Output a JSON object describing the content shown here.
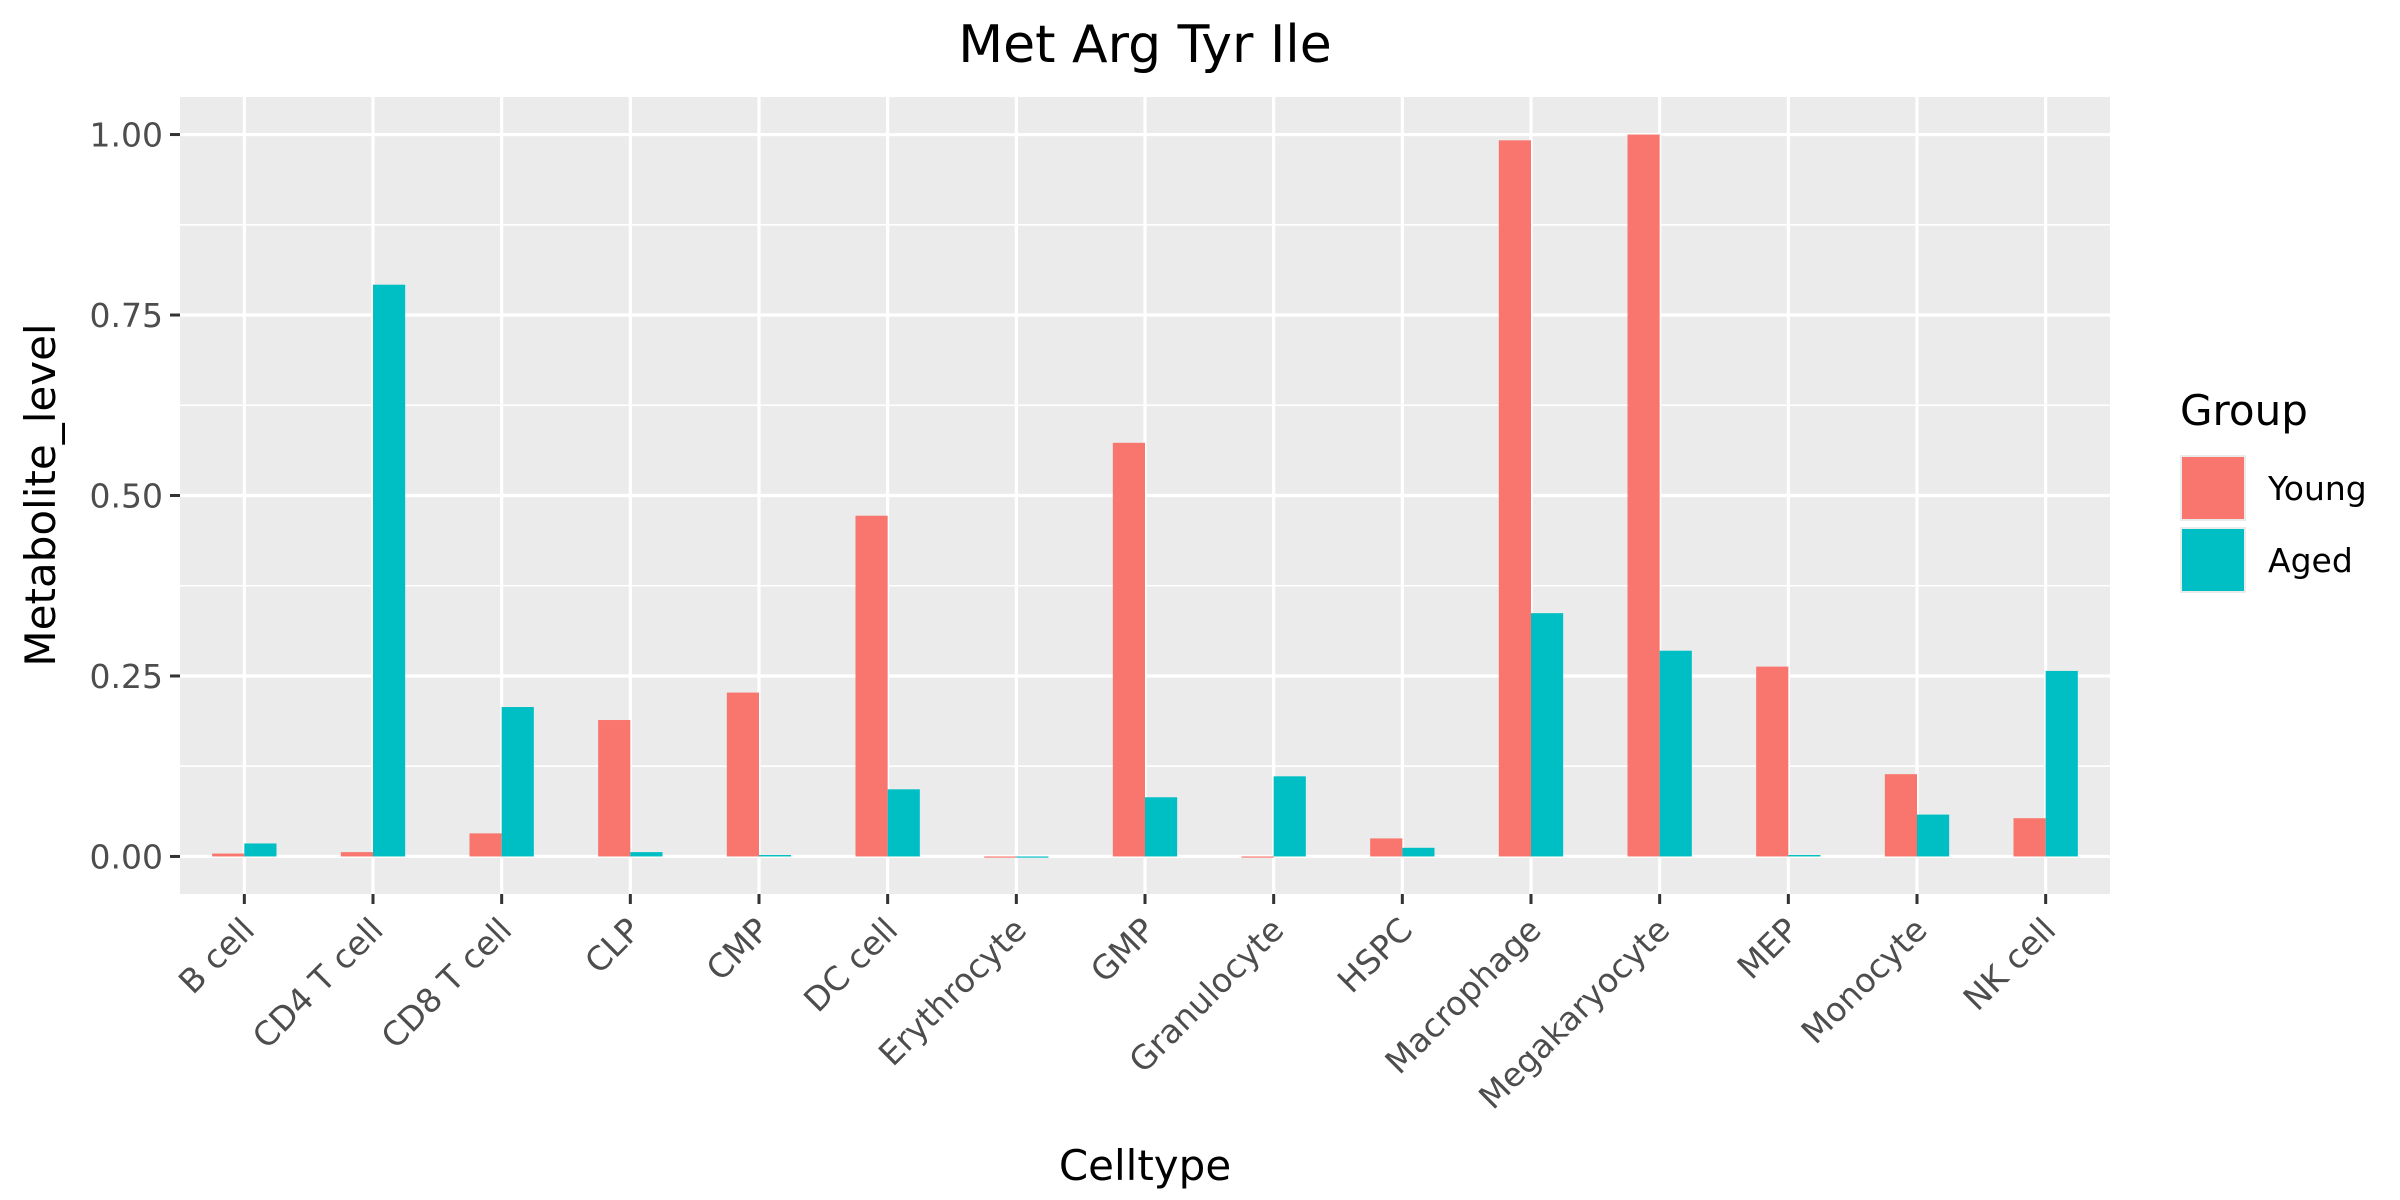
{
  "chart_data": {
    "type": "bar",
    "title": "Met Arg Tyr Ile",
    "xlabel": "Celltype",
    "ylabel": "Metabolite_level",
    "categories": [
      "B cell",
      "CD4 T cell",
      "CD8 T cell",
      "CLP",
      "CMP",
      "DC cell",
      "Erythrocyte",
      "GMP",
      "Granulocyte",
      "HSPC",
      "Macrophage",
      "Megakaryocyte",
      "MEP",
      "Monocyte",
      "NK cell"
    ],
    "series": [
      {
        "name": "Young",
        "color": "#F8766D",
        "values": [
          0.004,
          0.006,
          0.032,
          0.189,
          0.227,
          0.472,
          0.0,
          0.573,
          0.0,
          0.025,
          0.992,
          1.0,
          0.263,
          0.114,
          0.053
        ]
      },
      {
        "name": "Aged",
        "color": "#00BFC4",
        "values": [
          0.018,
          0.792,
          0.207,
          0.006,
          0.002,
          0.093,
          0.0,
          0.082,
          0.111,
          0.012,
          0.337,
          0.285,
          0.002,
          0.058,
          0.257
        ]
      }
    ],
    "ylim": [
      -0.052,
      1.052
    ],
    "yticks": [
      0.0,
      0.25,
      0.5,
      0.75,
      1.0
    ],
    "ytick_labels": [
      "0.00",
      "0.25",
      "0.50",
      "0.75",
      "1.00"
    ],
    "legend": {
      "title": "Group",
      "position": "right"
    },
    "grid": true,
    "panel_background": "#EBEBEB"
  }
}
